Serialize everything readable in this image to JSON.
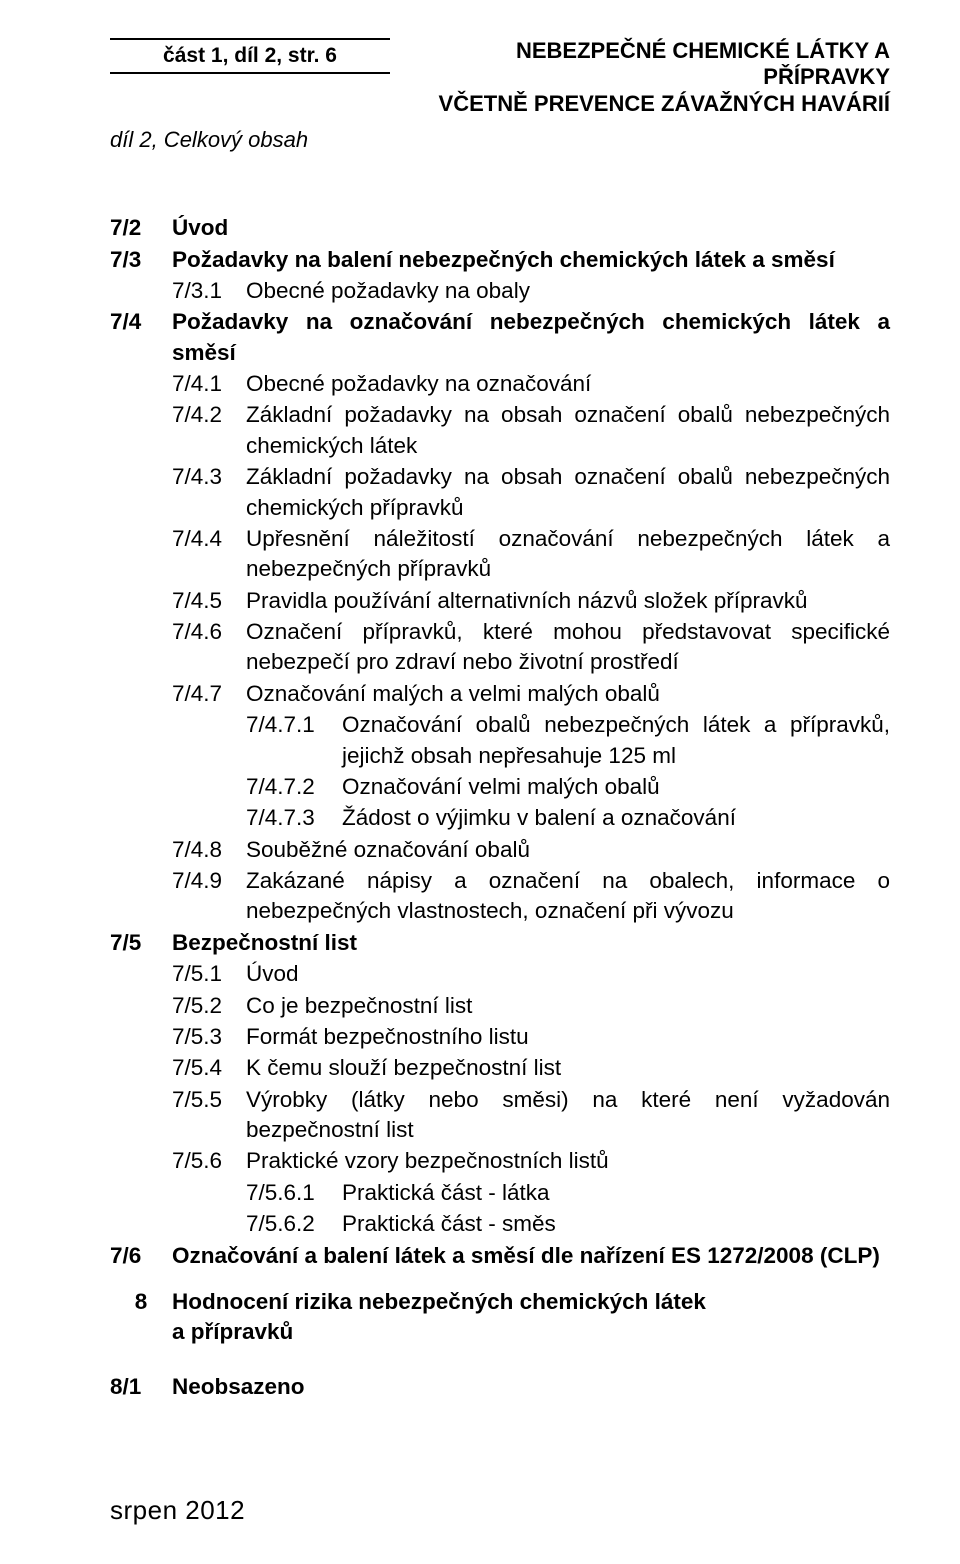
{
  "header": {
    "left": "část 1, díl 2, str. 6",
    "right_line1": "NEBEZPEČNÉ CHEMICKÉ LÁTKY A PŘÍPRAVKY",
    "right_line2": "VČETNĚ PREVENCE ZÁVAŽNÝCH HAVÁRIÍ"
  },
  "subheader": "díl 2, Celkový obsah",
  "toc": {
    "r72": {
      "n": "7/2",
      "t": "Úvod"
    },
    "r73": {
      "n": "7/3",
      "t": "Požadavky na balení nebezpečných chemických látek a směsí"
    },
    "r731": {
      "n": "7/3.1",
      "t": "Obecné požadavky na obaly"
    },
    "r74": {
      "n": "7/4",
      "t": "Požadavky na označování nebezpečných chemických látek a směsí"
    },
    "r741": {
      "n": "7/4.1",
      "t": "Obecné požadavky na označování"
    },
    "r742": {
      "n": "7/4.2",
      "t": "Základní požadavky na obsah označení obalů nebezpečných chemických látek"
    },
    "r743": {
      "n": "7/4.3",
      "t": "Základní požadavky na obsah označení obalů nebezpečných chemických přípravků"
    },
    "r744": {
      "n": "7/4.4",
      "t": "Upřesnění náležitostí označování nebezpečných látek a nebezpečných přípravků"
    },
    "r745": {
      "n": "7/4.5",
      "t": "Pravidla používání alternativních názvů složek přípravků"
    },
    "r746": {
      "n": "7/4.6",
      "t": "Označení přípravků, které mohou představovat specifické nebezpečí pro zdraví nebo životní prostředí"
    },
    "r747": {
      "n": "7/4.7",
      "t": "Označování malých a velmi malých obalů"
    },
    "r7471": {
      "n": "7/4.7.1",
      "t": "Označování obalů nebezpečných látek a přípravků, jejichž obsah nepřesahuje 125 ml"
    },
    "r7472": {
      "n": "7/4.7.2",
      "t": "Označování velmi malých obalů"
    },
    "r7473": {
      "n": "7/4.7.3",
      "t": "Žádost o výjimku v balení a označování"
    },
    "r748": {
      "n": "7/4.8",
      "t": "Souběžné označování obalů"
    },
    "r749": {
      "n": "7/4.9",
      "t": "Zakázané nápisy a označení na obalech, informace o nebezpečných vlastnostech, označení při vývozu"
    },
    "r75": {
      "n": "7/5",
      "t": "Bezpečnostní list"
    },
    "r751": {
      "n": "7/5.1",
      "t": "Úvod"
    },
    "r752": {
      "n": "7/5.2",
      "t": "Co je bezpečnostní list"
    },
    "r753": {
      "n": "7/5.3",
      "t": "Formát bezpečnostního listu"
    },
    "r754": {
      "n": "7/5.4",
      "t": "K čemu slouží bezpečnostní list"
    },
    "r755": {
      "n": "7/5.5",
      "t": "Výrobky (látky nebo směsi) na které není vyžadován bezpečnostní list"
    },
    "r756": {
      "n": "7/5.6",
      "t": "Praktické vzory bezpečnostních listů"
    },
    "r7561": {
      "n": "7/5.6.1",
      "t": "Praktická část - látka"
    },
    "r7562": {
      "n": "7/5.6.2",
      "t": "Praktická část - směs"
    },
    "r76": {
      "n": "7/6",
      "t": "Označování a balení látek a směsí dle nařízení ES 1272/2008 (CLP)"
    },
    "r8": {
      "n": "8",
      "t1": "Hodnocení rizika nebezpečných chemických látek",
      "t2": "a přípravků"
    },
    "r81": {
      "n": "8/1",
      "t": "Neobsazeno"
    }
  },
  "footer": "srpen 2012"
}
